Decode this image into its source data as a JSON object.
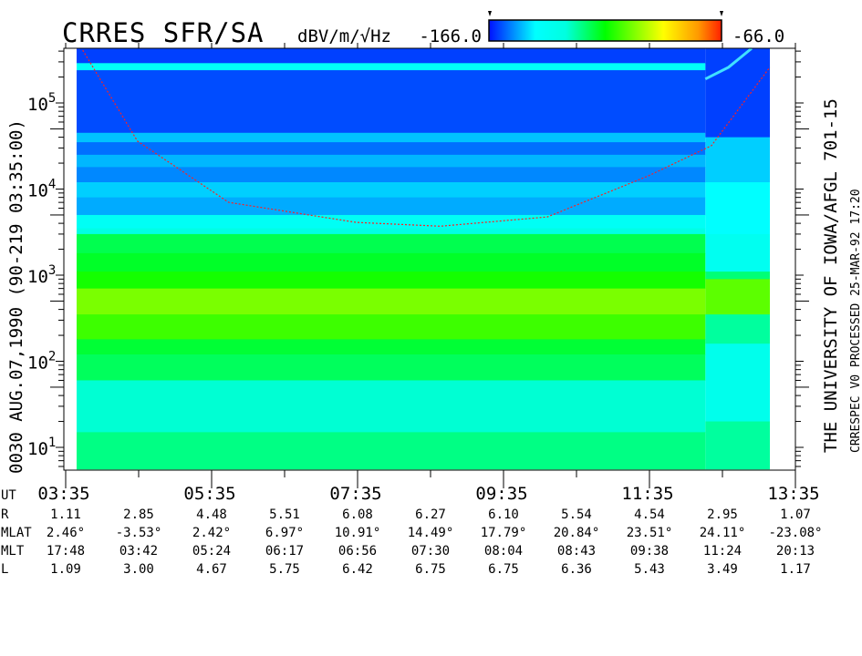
{
  "header": {
    "title": "CRRES SFR/SA",
    "units": "dBV/m/√Hz",
    "scale_min_label": "-166.0",
    "scale_max_label": "-66.0"
  },
  "left_label": "0030   AUG.07,1990   (90-219 03:35:00)",
  "right_label_main": "THE UNIVERSITY OF IOWA/AFGL 701-15",
  "right_label_sub": "CRRESPEC V0    PROCESSED 25-MAR-92  17:20",
  "y_ticks": [
    {
      "base": "10",
      "exp": "5",
      "value": 100000
    },
    {
      "base": "10",
      "exp": "4",
      "value": 10000
    },
    {
      "base": "10",
      "exp": "3",
      "value": 1000
    },
    {
      "base": "10",
      "exp": "2",
      "value": 100
    },
    {
      "base": "10",
      "exp": "1",
      "value": 10
    }
  ],
  "ephemeris": {
    "row_labels": [
      "UT",
      "R",
      "MLAT",
      "MLT",
      "L"
    ],
    "UT": [
      "03:35",
      "",
      "05:35",
      "",
      "07:35",
      "",
      "09:35",
      "",
      "11:35",
      "",
      "13:35"
    ],
    "R": [
      "1.11",
      "2.85",
      "4.48",
      "5.51",
      "6.08",
      "6.27",
      "6.10",
      "5.54",
      "4.54",
      "2.95",
      "1.07"
    ],
    "MLAT": [
      "2.46°",
      "-3.53°",
      "2.42°",
      "6.97°",
      "10.91°",
      "14.49°",
      "17.79°",
      "20.84°",
      "23.51°",
      "24.11°",
      "-23.08°"
    ],
    "MLT": [
      "17:48",
      "03:42",
      "05:24",
      "06:17",
      "06:56",
      "07:30",
      "08:04",
      "08:43",
      "09:38",
      "11:24",
      "20:13"
    ],
    "L": [
      "1.09",
      "3.00",
      "4.67",
      "5.75",
      "6.42",
      "6.75",
      "6.75",
      "6.36",
      "5.43",
      "3.49",
      "1.17"
    ]
  },
  "chart_data": {
    "type": "heatmap",
    "title": "CRRES SFR/SA",
    "colorbar": {
      "label": "dBV/m/√Hz",
      "range": [
        -166.0,
        -66.0
      ],
      "colors": [
        "#0010ff",
        "#00ffff",
        "#00ffe0",
        "#00ff00",
        "#ffff00",
        "#ff9900",
        "#ff2000"
      ]
    },
    "x_axis": {
      "label": "UT",
      "range": [
        "03:35",
        "13:35"
      ],
      "major_ticks": [
        "03:35",
        "05:35",
        "07:35",
        "09:35",
        "11:35",
        "13:35"
      ],
      "minor_step_minutes": 60
    },
    "y_axis": {
      "scale": "log",
      "unit": "Hz",
      "range": [
        5.6,
        430000
      ]
    },
    "segments": [
      {
        "time_range": [
          "03:44",
          "12:21"
        ],
        "bands": [
          {
            "f": [
              290000,
              430000
            ],
            "db": -162
          },
          {
            "f": [
              240000,
              290000
            ],
            "db": -143
          },
          {
            "f": [
              45000,
              240000
            ],
            "db": -161
          },
          {
            "f": [
              35000,
              45000
            ],
            "db": -151
          },
          {
            "f": [
              25000,
              35000
            ],
            "db": -158
          },
          {
            "f": [
              18000,
              25000
            ],
            "db": -152
          },
          {
            "f": [
              12000,
              18000
            ],
            "db": -156
          },
          {
            "f": [
              8000,
              12000
            ],
            "db": -150
          },
          {
            "f": [
              5000,
              8000
            ],
            "db": -153
          },
          {
            "f": [
              3500,
              5000
            ],
            "db": -142
          },
          {
            "f": [
              3000,
              3500
            ],
            "db": -135
          },
          {
            "f": [
              1800,
              3000
            ],
            "db": -122
          },
          {
            "f": [
              1100,
              1800
            ],
            "db": -119
          },
          {
            "f": [
              700,
              1100
            ],
            "db": -114
          },
          {
            "f": [
              350,
              700
            ],
            "db": -104
          },
          {
            "f": [
              180,
              350
            ],
            "db": -110
          },
          {
            "f": [
              120,
              180
            ],
            "db": -120
          },
          {
            "f": [
              60,
              120
            ],
            "db": -123
          },
          {
            "f": [
              15,
              60
            ],
            "db": -132
          },
          {
            "f": [
              5.6,
              15
            ],
            "db": -126
          }
        ]
      },
      {
        "time_range": [
          "12:21",
          "13:14"
        ],
        "bands": [
          {
            "f": [
              40000,
              430000
            ],
            "db": -162
          },
          {
            "f": [
              12000,
              40000
            ],
            "db": -150
          },
          {
            "f": [
              3000,
              12000
            ],
            "db": -146
          },
          {
            "f": [
              1100,
              3000
            ],
            "db": -140
          },
          {
            "f": [
              900,
              1100
            ],
            "db": -125
          },
          {
            "f": [
              350,
              900
            ],
            "db": -107
          },
          {
            "f": [
              160,
              350
            ],
            "db": -128
          },
          {
            "f": [
              20,
              160
            ],
            "db": -138
          },
          {
            "f": [
              5.6,
              20
            ],
            "db": -128
          }
        ]
      }
    ],
    "emission_line": {
      "color": "#40e0ff",
      "points": [
        [
          "12:21",
          190000
        ],
        [
          "12:40",
          260000
        ],
        [
          "12:59",
          430000
        ]
      ]
    },
    "fce_line": {
      "color": "#ff2020",
      "points": [
        [
          "03:49",
          410000
        ],
        [
          "04:34",
          36000
        ],
        [
          "05:49",
          7000
        ],
        [
          "07:34",
          4100
        ],
        [
          "08:43",
          3700
        ],
        [
          "10:11",
          4750
        ],
        [
          "11:34",
          14200
        ],
        [
          "12:26",
          32000
        ],
        [
          "13:14",
          260000
        ]
      ]
    }
  }
}
